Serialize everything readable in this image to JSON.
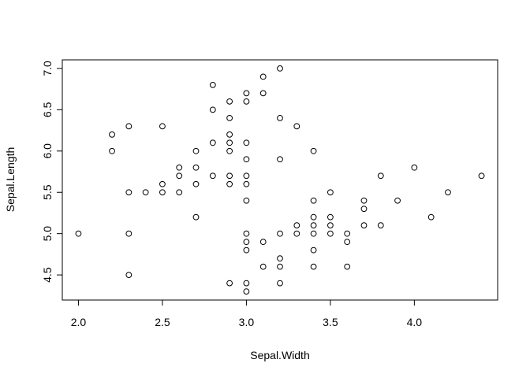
{
  "chart_data": {
    "type": "scatter",
    "title": "",
    "xlabel": "Sepal.Width",
    "ylabel": "Sepal.Length",
    "xlim": [
      1.904,
      4.496
    ],
    "ylim": [
      4.196,
      7.104
    ],
    "x_ticks": [
      2.0,
      2.5,
      3.0,
      3.5,
      4.0
    ],
    "x_tick_labels": [
      "2.0",
      "2.5",
      "3.0",
      "3.5",
      "4.0"
    ],
    "y_ticks": [
      4.5,
      5.0,
      5.5,
      6.0,
      6.5,
      7.0
    ],
    "y_tick_labels": [
      "4.5",
      "5.0",
      "5.5",
      "6.0",
      "6.5",
      "7.0"
    ],
    "grid": false,
    "marker": "open-circle",
    "points": [
      [
        2.0,
        5.0
      ],
      [
        2.2,
        6.2
      ],
      [
        2.2,
        6.0
      ],
      [
        2.3,
        6.3
      ],
      [
        2.3,
        5.5
      ],
      [
        2.3,
        5.0
      ],
      [
        2.3,
        4.5
      ],
      [
        2.4,
        5.5
      ],
      [
        2.5,
        6.3
      ],
      [
        2.5,
        5.6
      ],
      [
        2.5,
        5.5
      ],
      [
        2.6,
        5.8
      ],
      [
        2.6,
        5.7
      ],
      [
        2.6,
        5.5
      ],
      [
        2.7,
        6.0
      ],
      [
        2.7,
        5.8
      ],
      [
        2.7,
        5.6
      ],
      [
        2.7,
        5.2
      ],
      [
        2.8,
        6.8
      ],
      [
        2.8,
        6.5
      ],
      [
        2.8,
        6.1
      ],
      [
        2.8,
        5.7
      ],
      [
        2.9,
        6.6
      ],
      [
        2.9,
        6.4
      ],
      [
        2.9,
        6.2
      ],
      [
        2.9,
        6.1
      ],
      [
        2.9,
        6.0
      ],
      [
        2.9,
        5.7
      ],
      [
        2.9,
        5.6
      ],
      [
        2.9,
        4.4
      ],
      [
        3.0,
        6.7
      ],
      [
        3.0,
        6.6
      ],
      [
        3.0,
        6.1
      ],
      [
        3.0,
        5.9
      ],
      [
        3.0,
        5.7
      ],
      [
        3.0,
        5.6
      ],
      [
        3.0,
        5.4
      ],
      [
        3.0,
        5.0
      ],
      [
        3.0,
        4.9
      ],
      [
        3.0,
        4.8
      ],
      [
        3.0,
        4.4
      ],
      [
        3.0,
        4.3
      ],
      [
        3.1,
        6.9
      ],
      [
        3.1,
        6.7
      ],
      [
        3.1,
        4.9
      ],
      [
        3.1,
        4.6
      ],
      [
        3.2,
        7.0
      ],
      [
        3.2,
        6.4
      ],
      [
        3.2,
        5.9
      ],
      [
        3.2,
        5.0
      ],
      [
        3.2,
        4.7
      ],
      [
        3.2,
        4.6
      ],
      [
        3.2,
        4.4
      ],
      [
        3.3,
        6.3
      ],
      [
        3.3,
        5.1
      ],
      [
        3.3,
        5.0
      ],
      [
        3.4,
        6.0
      ],
      [
        3.4,
        5.4
      ],
      [
        3.4,
        5.2
      ],
      [
        3.4,
        5.1
      ],
      [
        3.4,
        5.0
      ],
      [
        3.4,
        4.8
      ],
      [
        3.4,
        4.6
      ],
      [
        3.5,
        5.5
      ],
      [
        3.5,
        5.2
      ],
      [
        3.5,
        5.1
      ],
      [
        3.5,
        5.0
      ],
      [
        3.6,
        5.0
      ],
      [
        3.6,
        4.9
      ],
      [
        3.6,
        4.6
      ],
      [
        3.7,
        5.4
      ],
      [
        3.7,
        5.3
      ],
      [
        3.7,
        5.1
      ],
      [
        3.8,
        5.7
      ],
      [
        3.8,
        5.1
      ],
      [
        3.9,
        5.4
      ],
      [
        4.0,
        5.8
      ],
      [
        4.1,
        5.2
      ],
      [
        4.2,
        5.5
      ],
      [
        4.4,
        5.7
      ]
    ]
  }
}
